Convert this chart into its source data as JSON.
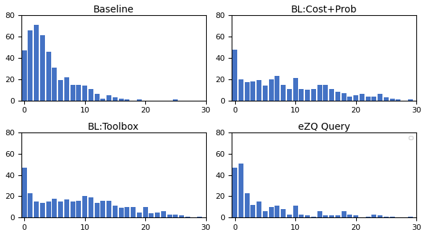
{
  "subplots": [
    {
      "title": "Baseline",
      "bar_heights": [
        47,
        66,
        71,
        61,
        46,
        31,
        19,
        22,
        15,
        15,
        14,
        11,
        6,
        2,
        5,
        3,
        2,
        1,
        0,
        1,
        0,
        0,
        0,
        0,
        0,
        1,
        0,
        0,
        0,
        0
      ]
    },
    {
      "title": "BL:Cost+Prob",
      "bar_heights": [
        48,
        20,
        17,
        18,
        19,
        14,
        20,
        23,
        15,
        11,
        21,
        11,
        10,
        11,
        15,
        15,
        11,
        8,
        7,
        4,
        5,
        6,
        4,
        4,
        6,
        3,
        2,
        1,
        0,
        1
      ]
    },
    {
      "title": "BL:Toolbox",
      "bar_heights": [
        47,
        23,
        15,
        14,
        15,
        18,
        15,
        17,
        15,
        16,
        20,
        19,
        14,
        16,
        16,
        11,
        9,
        10,
        10,
        5,
        10,
        4,
        5,
        6,
        3,
        3,
        2,
        1,
        0,
        1
      ]
    },
    {
      "title": "eZQ Query",
      "bar_heights": [
        47,
        51,
        23,
        12,
        15,
        6,
        10,
        11,
        8,
        3,
        11,
        3,
        2,
        1,
        6,
        2,
        2,
        2,
        6,
        3,
        2,
        0,
        1,
        3,
        2,
        1,
        1,
        0,
        0,
        1
      ],
      "has_legend": true
    }
  ],
  "bar_color": "#4472c4",
  "ylim": [
    0,
    80
  ],
  "xlim": [
    -0.5,
    30
  ],
  "yticks": [
    0,
    20,
    40,
    60,
    80
  ],
  "xticks": [
    0,
    10,
    20,
    30
  ],
  "figsize": [
    6.16,
    3.42
  ],
  "dpi": 100
}
